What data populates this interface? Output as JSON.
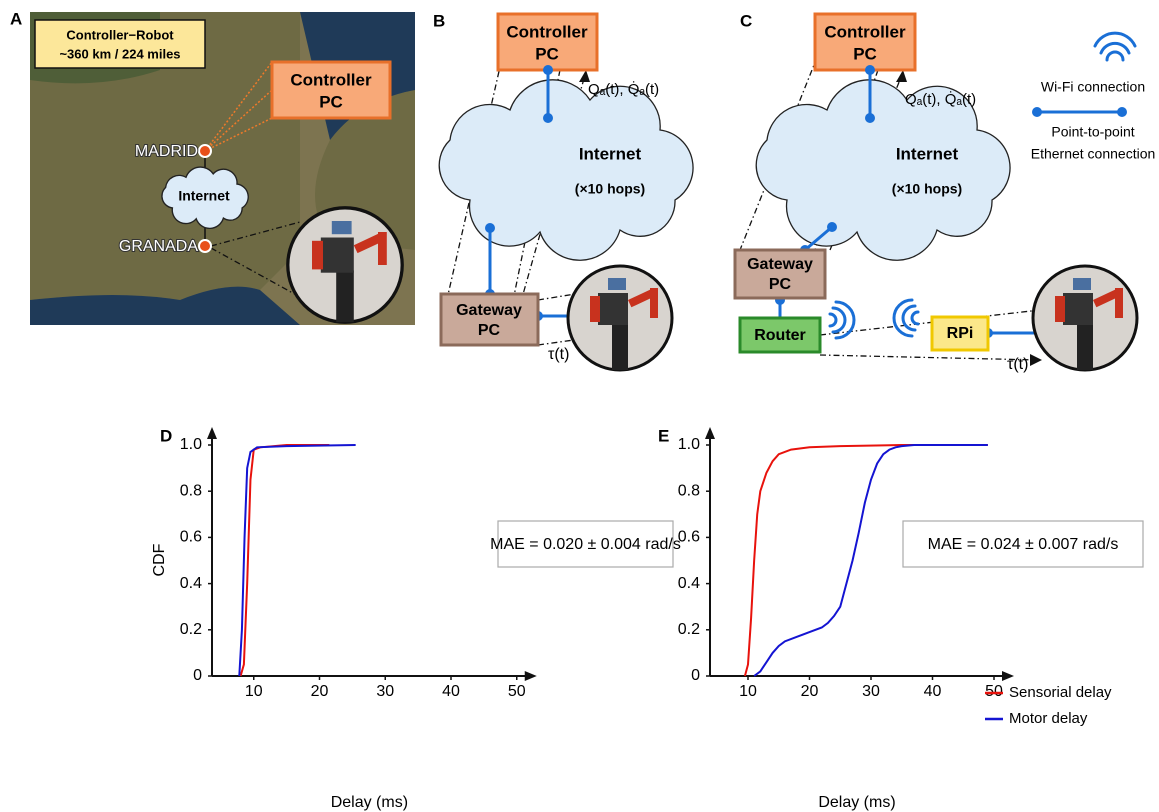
{
  "panels": {
    "a": {
      "label": "A",
      "info": [
        "Controller−Robot",
        "~360 km / 224 miles"
      ],
      "controller": [
        "Controller",
        "PC"
      ],
      "madrid": "MADRID",
      "internet": "Internet",
      "granada": "GRANADA"
    },
    "b": {
      "label": "B",
      "controller": [
        "Controller",
        "PC"
      ],
      "internet": "Internet",
      "hops": "(×10 hops)",
      "gateway": [
        "Gateway",
        "PC"
      ],
      "command": "Qₐ(t), Q̇ₐ(t)",
      "torque": "τ(t)"
    },
    "c": {
      "label": "C",
      "controller": [
        "Controller",
        "PC"
      ],
      "internet": "Internet",
      "hops": "(×10 hops)",
      "gateway": [
        "Gateway",
        "PC"
      ],
      "router": "Router",
      "rpi": "RPi",
      "command": "Qₐ(t), Q̇ₐ(t)",
      "torque": "τ(t)"
    },
    "legend": {
      "wifi": "Wi-Fi connection",
      "ethernet": [
        "Point-to-point",
        "Ethernet connection"
      ]
    }
  },
  "chart_data": [
    {
      "type": "line",
      "label": "D",
      "xlabel": "Delay (ms)",
      "ylabel": "CDF",
      "annotation": "MAE = 0.020 ± 0.004 rad/s",
      "xlim": [
        0,
        50
      ],
      "xticks": [
        10,
        20,
        30,
        40,
        50
      ],
      "ylim": [
        0,
        1
      ],
      "yticks": [
        0,
        0.2,
        0.4,
        0.6,
        0.8,
        {
          "value": 1,
          "label": "1.0"
        }
      ],
      "series": [
        {
          "color": "#e8120c",
          "x": [
            8,
            8.5,
            9,
            9.5,
            10,
            11,
            15,
            21.5
          ],
          "values": [
            0,
            0.05,
            0.4,
            0.85,
            0.98,
            0.99,
            1,
            1
          ]
        },
        {
          "color": "#1414d2",
          "x": [
            7.8,
            8.2,
            8.6,
            9,
            9.5,
            10.5,
            15,
            25.5
          ],
          "values": [
            0,
            0.2,
            0.6,
            0.9,
            0.97,
            0.99,
            0.995,
            1
          ]
        }
      ]
    },
    {
      "type": "line",
      "label": "E",
      "xlabel": "Delay (ms)",
      "annotation": "MAE = 0.024 ± 0.007 rad/s",
      "xlim": [
        0,
        50
      ],
      "xticks": [
        10,
        20,
        30,
        40,
        50
      ],
      "ylim": [
        0,
        1
      ],
      "yticks": [
        0,
        0.2,
        0.4,
        0.6,
        0.8,
        {
          "value": 1,
          "label": "1.0"
        }
      ],
      "legend": "lower right",
      "series": [
        {
          "name": "Sensorial delay",
          "color": "#e8120c",
          "x": [
            9.5,
            10,
            10.5,
            11,
            11.5,
            12,
            13,
            14,
            15,
            17,
            20,
            25,
            35,
            49
          ],
          "values": [
            0,
            0.05,
            0.25,
            0.5,
            0.7,
            0.8,
            0.88,
            0.93,
            0.96,
            0.98,
            0.99,
            0.995,
            1,
            1
          ]
        },
        {
          "name": "Motor delay",
          "color": "#1414d2",
          "x": [
            11,
            12,
            13,
            14,
            15,
            16,
            18,
            20,
            22,
            23,
            24,
            25,
            26,
            27,
            28,
            29,
            30,
            31,
            32,
            33,
            34,
            35,
            37,
            40,
            49
          ],
          "values": [
            0,
            0.02,
            0.06,
            0.1,
            0.13,
            0.15,
            0.17,
            0.19,
            0.21,
            0.23,
            0.26,
            0.3,
            0.4,
            0.5,
            0.62,
            0.75,
            0.85,
            0.92,
            0.96,
            0.98,
            0.99,
            0.995,
            1,
            1,
            1
          ]
        }
      ]
    }
  ]
}
